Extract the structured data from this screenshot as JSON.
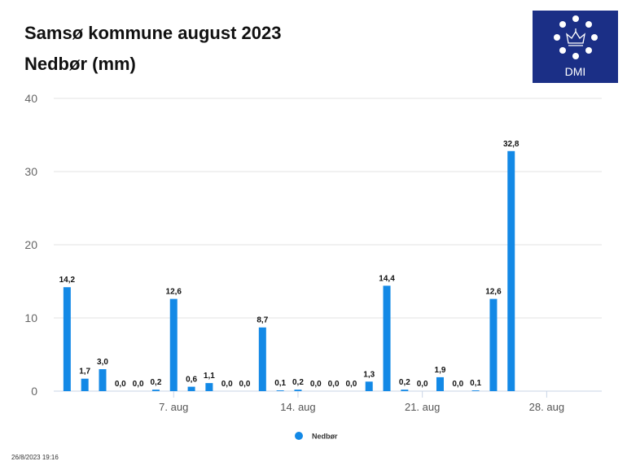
{
  "header": {
    "title": "Samsø kommune august 2023",
    "subtitle": "Nedbør (mm)"
  },
  "logo": {
    "text": "DMI",
    "color": "#1b2f86"
  },
  "footer": {
    "timestamp": "26/8/2023 19:16"
  },
  "chart_data": {
    "type": "bar",
    "title": "Samsø kommune august 2023",
    "subtitle": "Nedbør (mm)",
    "xlabel": "",
    "ylabel": "",
    "ylim": [
      0,
      40
    ],
    "y_ticks": [
      0,
      10,
      20,
      30,
      40
    ],
    "grid": true,
    "legend_position": "bottom",
    "bar_color": "#1389e6",
    "x_ticks": [
      {
        "day": 7,
        "label": "7. aug"
      },
      {
        "day": 14,
        "label": "14. aug"
      },
      {
        "day": 21,
        "label": "21. aug"
      },
      {
        "day": 28,
        "label": "28. aug"
      }
    ],
    "series": [
      {
        "name": "Nedbør",
        "days": [
          1,
          2,
          3,
          4,
          5,
          6,
          7,
          8,
          9,
          10,
          11,
          12,
          13,
          14,
          15,
          16,
          17,
          18,
          19,
          20,
          21,
          22,
          23,
          24,
          25,
          26,
          27
        ],
        "values": [
          14.2,
          1.7,
          3.0,
          0.0,
          0.0,
          0.2,
          12.6,
          0.6,
          1.1,
          0.0,
          0.0,
          8.7,
          0.1,
          0.2,
          0.0,
          0.0,
          0.0,
          1.3,
          14.4,
          0.2,
          0.0,
          1.9,
          0.0,
          0.1,
          12.6,
          32.8,
          0.0
        ],
        "labels": [
          "14,2",
          "1,7",
          "3,0",
          "0,0",
          "0,0",
          "0,2",
          "12,6",
          "0,6",
          "1,1",
          "0,0",
          "0,0",
          "8,7",
          "0,1",
          "0,2",
          "0,0",
          "0,0",
          "0,0",
          "1,3",
          "14,4",
          "0,2",
          "0,0",
          "1,9",
          "0,0",
          "0,1",
          "12,6",
          "32,8",
          ""
        ]
      }
    ]
  }
}
